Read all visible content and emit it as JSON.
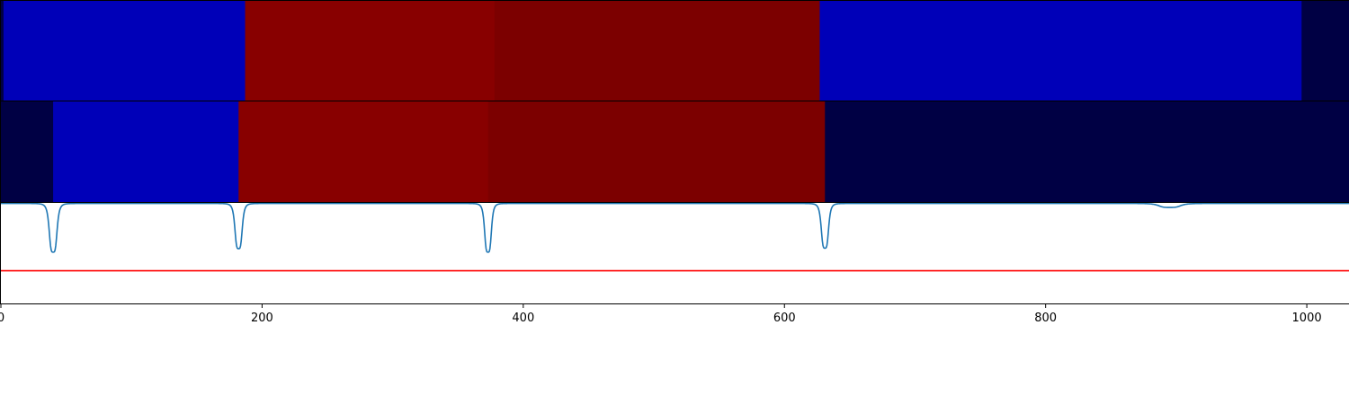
{
  "chart_data": [
    {
      "type": "heatmap",
      "panel": "top-segmentation",
      "segments": [
        {
          "start": 0,
          "end": 2,
          "color": "#000044"
        },
        {
          "start": 2,
          "end": 187,
          "color": "#0000b8"
        },
        {
          "start": 187,
          "end": 378,
          "color": "#880000"
        },
        {
          "start": 378,
          "end": 627,
          "color": "#7c0000"
        },
        {
          "start": 627,
          "end": 996,
          "color": "#0000b8"
        },
        {
          "start": 996,
          "end": 1033,
          "color": "#000044"
        }
      ]
    },
    {
      "type": "heatmap",
      "panel": "middle-segmentation",
      "segments": [
        {
          "start": 0,
          "end": 40,
          "color": "#000044"
        },
        {
          "start": 40,
          "end": 182,
          "color": "#0000b8"
        },
        {
          "start": 182,
          "end": 373,
          "color": "#880000"
        },
        {
          "start": 373,
          "end": 631,
          "color": "#7c0000"
        },
        {
          "start": 631,
          "end": 1033,
          "color": "#000044"
        }
      ]
    },
    {
      "type": "line",
      "panel": "boundary-signal",
      "xlim": [
        0,
        1033
      ],
      "ylim": [
        -2.0,
        0.0
      ],
      "xticks": [
        0,
        200,
        400,
        600,
        800,
        1000
      ],
      "threshold": {
        "y": -1.35,
        "color": "#ff0000"
      },
      "series": [
        {
          "color": "#1f77b4",
          "baseline": -0.01,
          "dips": [
            {
              "x": 40,
              "depth": 0.97,
              "width": 3.2
            },
            {
              "x": 182,
              "depth": 0.9,
              "width": 3.0
            },
            {
              "x": 373,
              "depth": 0.97,
              "width": 2.8
            },
            {
              "x": 631,
              "depth": 0.89,
              "width": 3.0
            },
            {
              "x": 895,
              "depth": 0.08,
              "width": 9.0
            }
          ]
        }
      ]
    }
  ]
}
